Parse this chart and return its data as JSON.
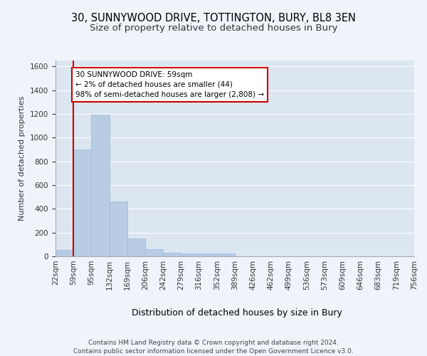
{
  "title_line1": "30, SUNNYWOOD DRIVE, TOTTINGTON, BURY, BL8 3EN",
  "title_line2": "Size of property relative to detached houses in Bury",
  "xlabel": "Distribution of detached houses by size in Bury",
  "ylabel": "Number of detached properties",
  "footer_line1": "Contains HM Land Registry data © Crown copyright and database right 2024.",
  "footer_line2": "Contains public sector information licensed under the Open Government Licence v3.0.",
  "bin_edges": [
    0,
    1,
    2,
    3,
    4,
    5,
    6,
    7,
    8,
    9,
    10,
    11,
    12,
    13,
    14,
    15,
    16,
    17,
    18,
    19,
    20
  ],
  "bin_labels": [
    "22sqm",
    "59sqm",
    "95sqm",
    "132sqm",
    "169sqm",
    "206sqm",
    "242sqm",
    "279sqm",
    "316sqm",
    "352sqm",
    "389sqm",
    "426sqm",
    "462sqm",
    "499sqm",
    "536sqm",
    "573sqm",
    "609sqm",
    "646sqm",
    "683sqm",
    "719sqm",
    "756sqm"
  ],
  "bar_values": [
    55,
    900,
    1195,
    465,
    150,
    60,
    30,
    25,
    25,
    25,
    0,
    0,
    0,
    0,
    0,
    0,
    0,
    0,
    0,
    0
  ],
  "bar_color": "#b8cce4",
  "bar_edge_color": "#95b8d8",
  "background_color": "#f0f4fa",
  "plot_bg_color": "#dce6f1",
  "red_line_index": 1,
  "annotation_text": "30 SUNNYWOOD DRIVE: 59sqm\n← 2% of detached houses are smaller (44)\n98% of semi-detached houses are larger (2,808) →",
  "annotation_box_facecolor": "#ffffff",
  "annotation_box_edgecolor": "#cc0000",
  "ylim": [
    0,
    1650
  ],
  "yticks": [
    0,
    200,
    400,
    600,
    800,
    1000,
    1200,
    1400,
    1600
  ],
  "grid_color": "#ffffff",
  "title1_fontsize": 10.5,
  "title2_fontsize": 9.5,
  "xlabel_fontsize": 9,
  "ylabel_fontsize": 8,
  "tick_fontsize": 7.5,
  "annotation_fontsize": 7.5,
  "footer_fontsize": 6.5
}
